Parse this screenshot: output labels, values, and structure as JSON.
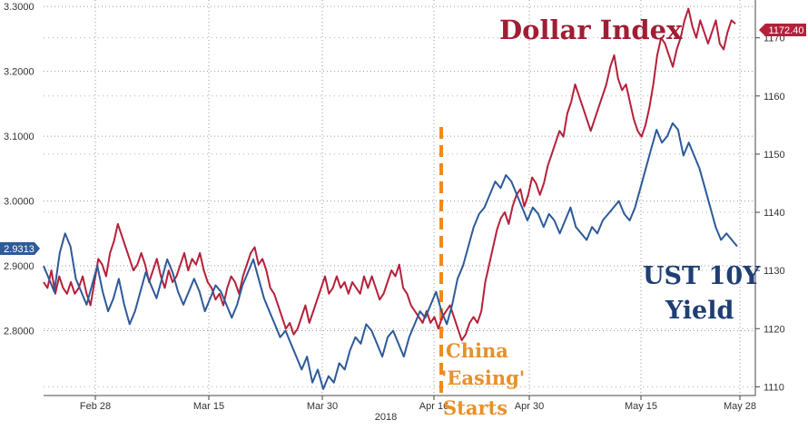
{
  "chart_data": {
    "type": "line",
    "title": "",
    "x_label": "2018",
    "x_ticks": [
      "Feb 28",
      "Mar 15",
      "Mar 30",
      "Apr 16",
      "Apr 30",
      "May 15",
      "May 28"
    ],
    "y_left": {
      "ticks": [
        "2.8000",
        "2.9000",
        "3.0000",
        "3.1000",
        "3.2000",
        "3.3000"
      ],
      "range": [
        2.7,
        3.31
      ]
    },
    "y_right": {
      "ticks": [
        "1110",
        "1120",
        "1130",
        "1140",
        "1150",
        "1160",
        "1170"
      ],
      "range": [
        1108.5,
        1176.5
      ]
    },
    "grid": true,
    "series": [
      {
        "name": "Dollar Index",
        "axis": "right",
        "color": "#b5203a",
        "last_value_label": "1172.40",
        "values": [
          1128,
          1127,
          1130,
          1126,
          1129,
          1127,
          1126,
          1128,
          1126,
          1127,
          1129,
          1126,
          1124,
          1128,
          1132,
          1131,
          1129,
          1133,
          1135,
          1138,
          1136,
          1134,
          1132,
          1130,
          1131,
          1133,
          1131,
          1128,
          1130,
          1132,
          1129,
          1127,
          1130,
          1128,
          1129,
          1131,
          1133,
          1130,
          1132,
          1131,
          1133,
          1130,
          1128,
          1127,
          1125,
          1126,
          1124,
          1127,
          1129,
          1128,
          1126,
          1129,
          1131,
          1133,
          1134,
          1131,
          1132,
          1130,
          1127,
          1126,
          1124,
          1122,
          1120,
          1121,
          1119,
          1120,
          1122,
          1124,
          1121,
          1123,
          1125,
          1127,
          1129,
          1126,
          1127,
          1129,
          1127,
          1128,
          1126,
          1128,
          1127,
          1126,
          1129,
          1127,
          1129,
          1127,
          1125,
          1126,
          1128,
          1130,
          1129,
          1131,
          1127,
          1126,
          1124,
          1123,
          1122,
          1121,
          1123,
          1121,
          1122,
          1120,
          1122,
          1123,
          1124,
          1122,
          1120,
          1118,
          1119,
          1121,
          1122,
          1121,
          1123,
          1128,
          1131,
          1134,
          1137,
          1139,
          1140,
          1138,
          1141,
          1143,
          1144,
          1141,
          1143,
          1146,
          1145,
          1143,
          1145,
          1148,
          1150,
          1152,
          1154,
          1153,
          1157,
          1159,
          1162,
          1160,
          1158,
          1156,
          1154,
          1156,
          1158,
          1160,
          1162,
          1165,
          1167,
          1163,
          1161,
          1162,
          1159,
          1156,
          1154,
          1153,
          1155,
          1158,
          1162,
          1167,
          1170,
          1169,
          1167,
          1165,
          1168,
          1170,
          1173,
          1175,
          1172,
          1170,
          1173,
          1171,
          1169,
          1171,
          1173,
          1169,
          1168,
          1171,
          1173,
          1172.4
        ]
      },
      {
        "name": "UST 10Y Yield",
        "axis": "left",
        "color": "#2d5a99",
        "last_value_label": "2.9313",
        "values": [
          2.9,
          2.88,
          2.86,
          2.92,
          2.95,
          2.93,
          2.88,
          2.86,
          2.84,
          2.87,
          2.9,
          2.86,
          2.83,
          2.85,
          2.88,
          2.84,
          2.81,
          2.83,
          2.86,
          2.89,
          2.87,
          2.85,
          2.88,
          2.91,
          2.89,
          2.86,
          2.84,
          2.86,
          2.88,
          2.86,
          2.83,
          2.85,
          2.87,
          2.86,
          2.84,
          2.82,
          2.84,
          2.87,
          2.89,
          2.91,
          2.88,
          2.85,
          2.83,
          2.81,
          2.79,
          2.8,
          2.78,
          2.76,
          2.74,
          2.76,
          2.72,
          2.74,
          2.71,
          2.73,
          2.72,
          2.75,
          2.74,
          2.77,
          2.79,
          2.78,
          2.81,
          2.8,
          2.78,
          2.76,
          2.79,
          2.8,
          2.78,
          2.76,
          2.79,
          2.81,
          2.83,
          2.82,
          2.84,
          2.86,
          2.83,
          2.81,
          2.84,
          2.88,
          2.9,
          2.93,
          2.96,
          2.98,
          2.99,
          3.01,
          3.03,
          3.02,
          3.04,
          3.03,
          3.01,
          2.99,
          2.97,
          2.99,
          2.98,
          2.96,
          2.98,
          2.97,
          2.95,
          2.97,
          2.99,
          2.96,
          2.95,
          2.94,
          2.96,
          2.95,
          2.97,
          2.98,
          2.99,
          3.0,
          2.98,
          2.97,
          2.99,
          3.02,
          3.05,
          3.08,
          3.11,
          3.09,
          3.1,
          3.12,
          3.11,
          3.07,
          3.09,
          3.07,
          3.05,
          3.02,
          2.99,
          2.96,
          2.94,
          2.95,
          2.94,
          2.93
        ]
      }
    ],
    "annotations": [
      {
        "text": "Dollar Index",
        "color": "#a11d33"
      },
      {
        "text": "UST 10Y",
        "color": "#1f3f73"
      },
      {
        "text": "Yield",
        "color": "#1f3f73"
      },
      {
        "text": "China",
        "color": "#e8902a"
      },
      {
        "text": "'Easing'",
        "color": "#e8902a"
      },
      {
        "text": "Starts",
        "color": "#e8902a"
      }
    ]
  }
}
